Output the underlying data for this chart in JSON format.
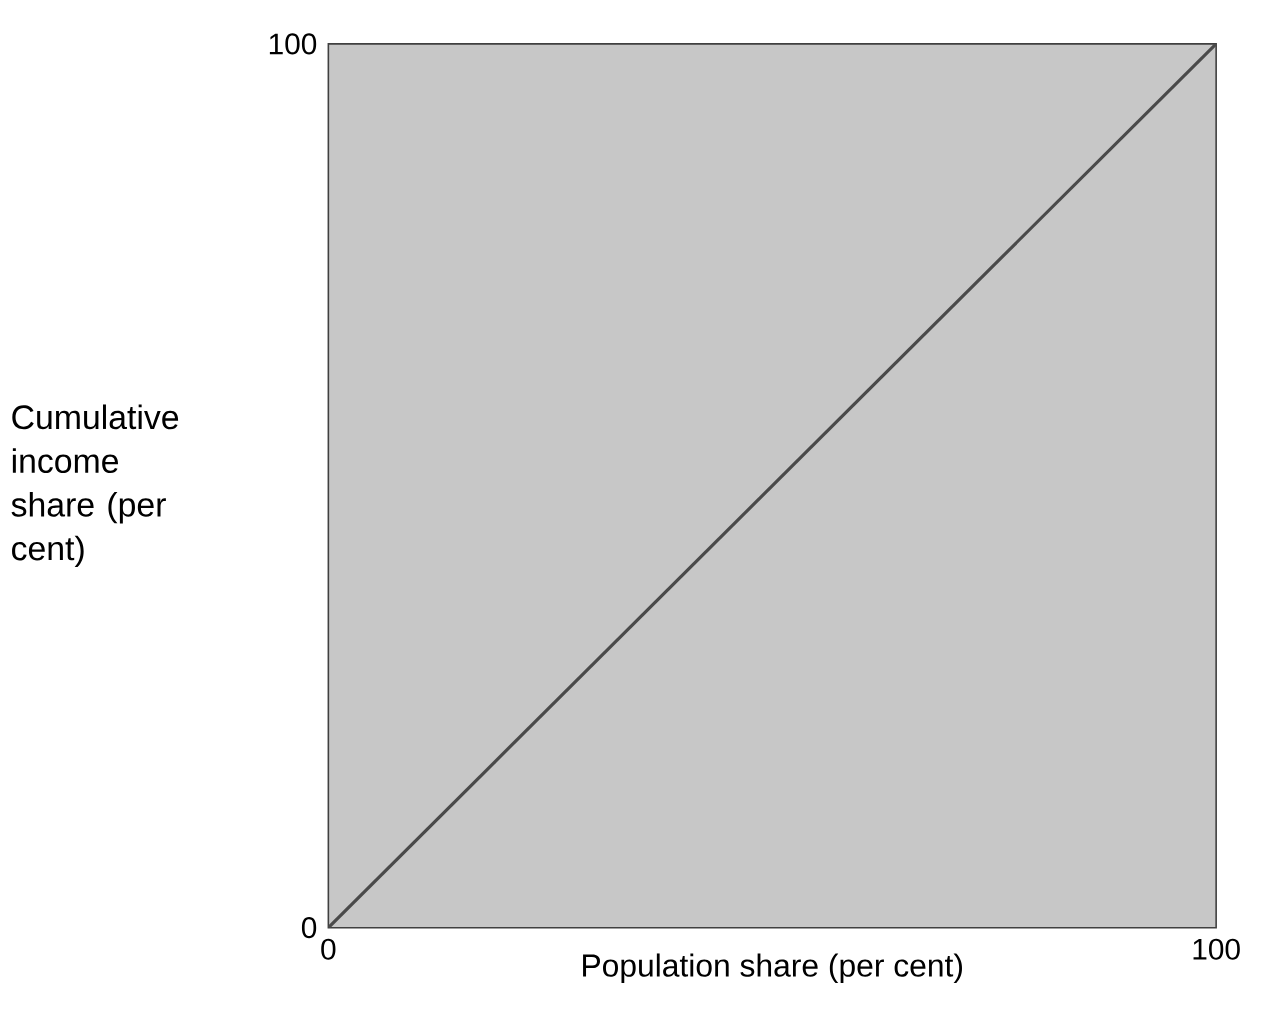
{
  "chart_data": {
    "type": "line",
    "xlabel": "Population share (per cent)",
    "ylabel": "Cumulative income share (per cent)",
    "x": [
      0,
      100
    ],
    "series": [
      {
        "color": "#4a4a4a",
        "values": [
          0,
          100
        ]
      }
    ],
    "xlim": [
      0,
      100
    ],
    "ylim": [
      0,
      100
    ],
    "xticks": [
      0,
      100
    ],
    "yticks": [
      0,
      100
    ],
    "marker": "none",
    "line_style": "solid"
  }
}
